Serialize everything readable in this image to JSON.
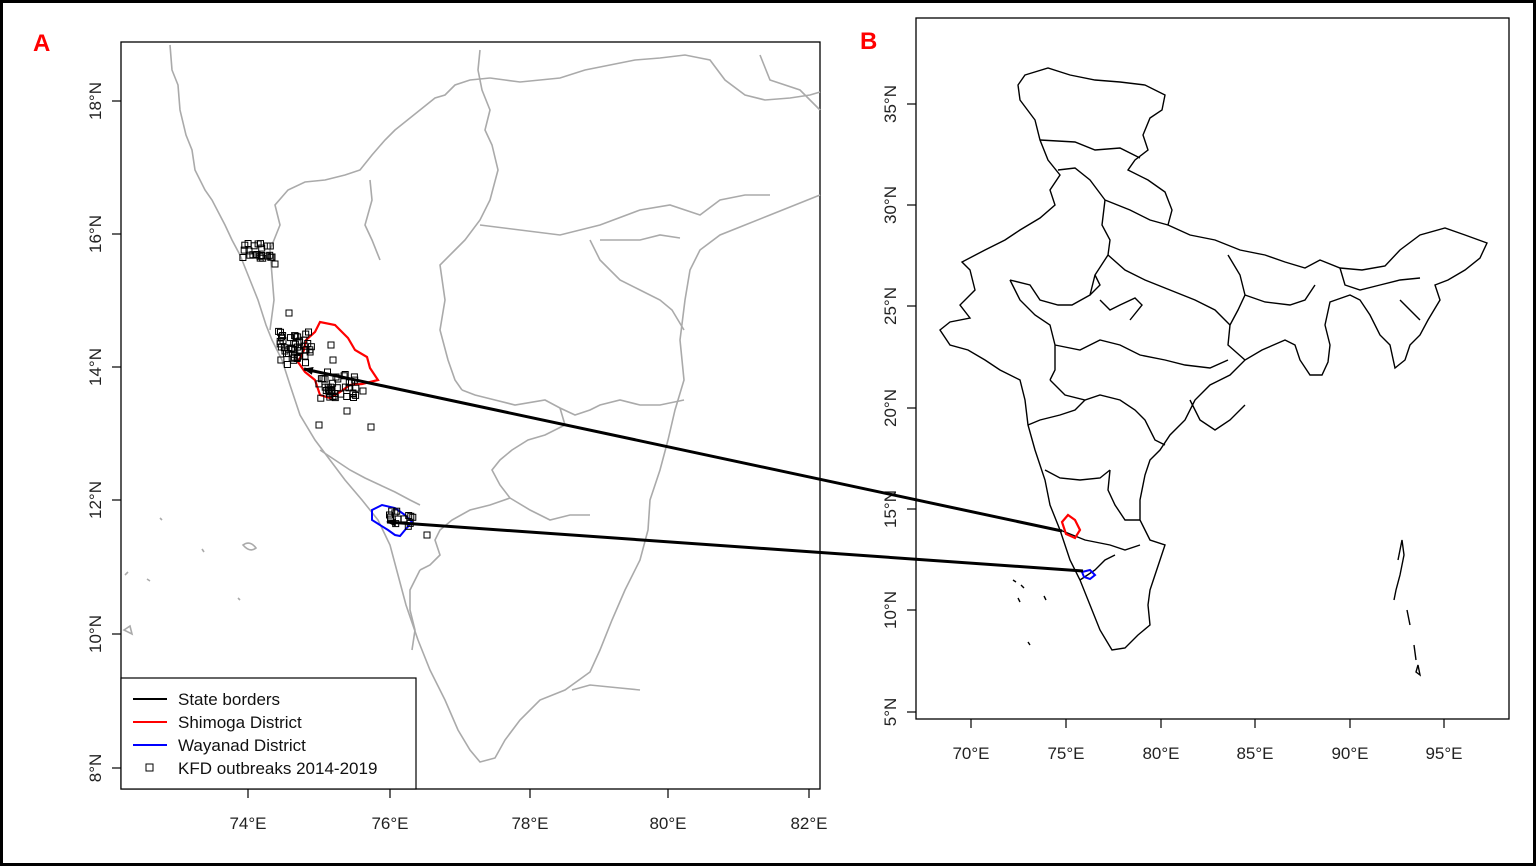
{
  "panels": {
    "a": {
      "letter": "A",
      "lat_ticks": [
        "8°N",
        "10°N",
        "12°N",
        "14°N",
        "16°N",
        "18°N"
      ],
      "lon_ticks": [
        "74°E",
        "76°E",
        "78°E",
        "80°E",
        "82°E"
      ],
      "legend": {
        "items": [
          {
            "label": "State borders",
            "color": "#000000",
            "kind": "line"
          },
          {
            "label": "Shimoga District",
            "color": "#ff0000",
            "kind": "line"
          },
          {
            "label": "Wayanad District",
            "color": "#0000ff",
            "kind": "line"
          },
          {
            "label": "KFD outbreaks 2014-2019",
            "color": "#000000",
            "kind": "square"
          }
        ]
      }
    },
    "b": {
      "letter": "B",
      "lat_ticks": [
        "5°N",
        "10°N",
        "15°N",
        "20°N",
        "25°N",
        "30°N",
        "35°N"
      ],
      "lon_ticks": [
        "70°E",
        "75°E",
        "80°E",
        "85°E",
        "90°E",
        "95°E"
      ]
    }
  },
  "colors": {
    "state_borders_gray": "#aaaaaa",
    "shimoga": "#ff0000",
    "wayanad": "#0000ff",
    "arrow": "#000000"
  }
}
